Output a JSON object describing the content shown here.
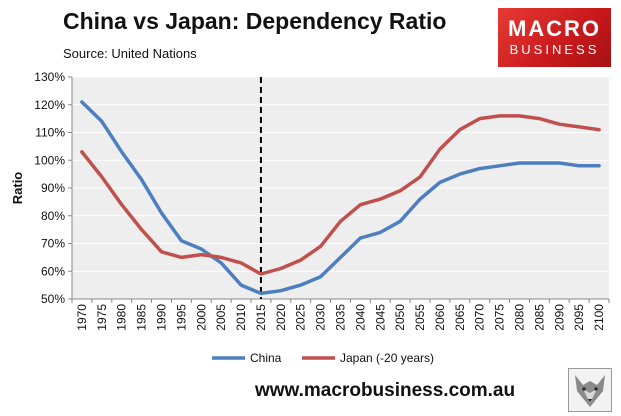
{
  "header": {
    "title": "China vs Japan: Dependency Ratio",
    "source": "Source: United Nations"
  },
  "logo": {
    "line1": "MACRO",
    "line2": "BUSINESS"
  },
  "footer": {
    "url": "www.macrobusiness.com.au"
  },
  "colors": {
    "china": "#4d7fc0",
    "japan": "#c0504d",
    "plot_bg": "#eeeeee"
  },
  "chart_data": {
    "type": "line",
    "title": "China vs Japan: Dependency Ratio",
    "xlabel": "",
    "ylabel": "Ratio",
    "ylim": [
      0.5,
      1.3
    ],
    "yticks": [
      "50%",
      "60%",
      "70%",
      "80%",
      "90%",
      "100%",
      "110%",
      "120%",
      "130%"
    ],
    "categories": [
      "1970",
      "1975",
      "1980",
      "1985",
      "1990",
      "1995",
      "2000",
      "2005",
      "2010",
      "2015",
      "2020",
      "2025",
      "2030",
      "2035",
      "2040",
      "2045",
      "2050",
      "2055",
      "2060",
      "2065",
      "2070",
      "2075",
      "2080",
      "2085",
      "2090",
      "2095",
      "2100"
    ],
    "vertical_marker": "2015",
    "legend_position": "bottom",
    "series": [
      {
        "name": "China",
        "values": [
          1.21,
          1.14,
          1.03,
          0.93,
          0.81,
          0.71,
          0.68,
          0.63,
          0.55,
          0.52,
          0.53,
          0.55,
          0.58,
          0.65,
          0.72,
          0.74,
          0.78,
          0.86,
          0.92,
          0.95,
          0.97,
          0.98,
          0.99,
          0.99,
          0.99,
          0.98,
          0.98
        ]
      },
      {
        "name": "Japan (-20 years)",
        "values": [
          1.03,
          0.94,
          0.84,
          0.75,
          0.67,
          0.65,
          0.66,
          0.65,
          0.63,
          0.59,
          0.61,
          0.64,
          0.69,
          0.78,
          0.84,
          0.86,
          0.89,
          0.94,
          1.04,
          1.11,
          1.15,
          1.16,
          1.16,
          1.15,
          1.13,
          1.12,
          1.11
        ]
      }
    ]
  }
}
